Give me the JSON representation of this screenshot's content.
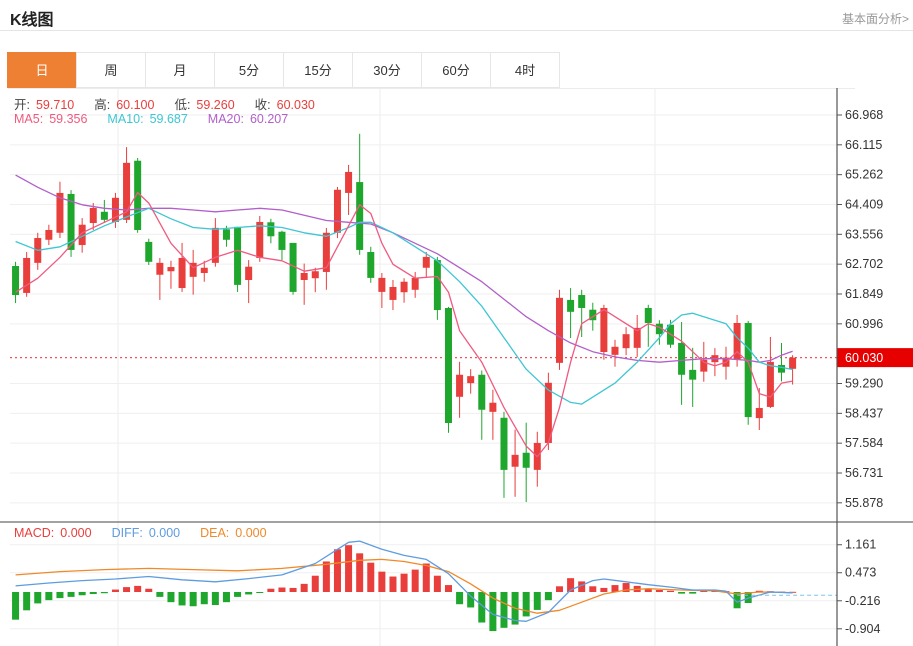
{
  "page": {
    "title": "K线图",
    "link": "基本面分析>"
  },
  "tabs": [
    {
      "label": "日",
      "active": true
    },
    {
      "label": "周",
      "active": false
    },
    {
      "label": "月",
      "active": false
    },
    {
      "label": "5分",
      "active": false
    },
    {
      "label": "15分",
      "active": false
    },
    {
      "label": "30分",
      "active": false
    },
    {
      "label": "60分",
      "active": false
    },
    {
      "label": "4时",
      "active": false
    }
  ],
  "ohlc": [
    {
      "label": "开:",
      "value": "59.710"
    },
    {
      "label": "高:",
      "value": "60.100"
    },
    {
      "label": "低:",
      "value": "59.260"
    },
    {
      "label": "收:",
      "value": "60.030"
    }
  ],
  "ma_legend": [
    {
      "label": "MA5:",
      "value": "59.356",
      "color": "#ef5a80"
    },
    {
      "label": "MA10:",
      "value": "59.687",
      "color": "#3ec6d3"
    },
    {
      "label": "MA20:",
      "value": "60.207",
      "color": "#b25fc9"
    }
  ],
  "macd_legend": [
    {
      "label": "MACD:",
      "value": "0.000",
      "color": "#e83e3c"
    },
    {
      "label": "DIFF:",
      "value": "0.000",
      "color": "#5e9cdf"
    },
    {
      "label": "DEA:",
      "value": "0.000",
      "color": "#f08929"
    }
  ],
  "colors": {
    "up": "#e83e3c",
    "down": "#1ea62d",
    "ma5": "#ef5a80",
    "ma10": "#3ec6d3",
    "ma20": "#b25fc9",
    "diff": "#5e9cdf",
    "dea": "#f08929",
    "price_line": "#f25555",
    "badge": "#e60000",
    "axis": "#555555",
    "grid": "#efefef",
    "vgrid": "#ececec",
    "tick_text": "#333333",
    "label_text": "#444444",
    "dashed_blue": "#7fc3e8"
  },
  "chart_data": {
    "type": "candlestick",
    "title": "K线图 (daily)",
    "legend_position": "top-left",
    "grid": true,
    "price_axis": {
      "ticks": [
        66.968,
        66.115,
        65.262,
        64.409,
        63.556,
        62.702,
        61.849,
        60.996,
        59.29,
        58.437,
        57.584,
        56.731,
        55.878
      ],
      "current_price": "60.030",
      "current_price_value": 60.03
    },
    "macd_axis": {
      "ticks": [
        1.161,
        0.473,
        -0.216,
        -0.904
      ]
    },
    "candles_format": [
      "open",
      "close",
      "low",
      "high"
    ],
    "candles": [
      [
        62.65,
        61.82,
        61.59,
        62.77
      ],
      [
        61.88,
        62.88,
        61.77,
        63.05
      ],
      [
        62.74,
        63.45,
        62.54,
        63.6
      ],
      [
        63.4,
        63.68,
        63.25,
        63.83
      ],
      [
        63.6,
        64.74,
        63.45,
        65.06
      ],
      [
        64.71,
        63.11,
        62.91,
        64.82
      ],
      [
        63.25,
        63.83,
        63.03,
        64.02
      ],
      [
        63.88,
        64.31,
        63.68,
        64.45
      ],
      [
        64.2,
        63.97,
        63.88,
        64.54
      ],
      [
        63.91,
        64.6,
        63.74,
        64.74
      ],
      [
        63.97,
        65.6,
        63.88,
        66.05
      ],
      [
        65.66,
        63.68,
        63.6,
        65.74
      ],
      [
        63.34,
        62.77,
        62.68,
        63.43
      ],
      [
        62.4,
        62.74,
        61.68,
        62.88
      ],
      [
        62.5,
        62.62,
        62.0,
        62.8
      ],
      [
        62.02,
        62.88,
        61.91,
        63.31
      ],
      [
        62.34,
        62.74,
        61.83,
        63.11
      ],
      [
        62.45,
        62.6,
        62.2,
        62.8
      ],
      [
        62.74,
        63.74,
        62.63,
        64.02
      ],
      [
        63.7,
        63.4,
        63.2,
        63.8
      ],
      [
        63.77,
        62.11,
        61.91,
        63.77
      ],
      [
        62.25,
        62.63,
        61.59,
        62.82
      ],
      [
        62.88,
        63.91,
        62.77,
        64.08
      ],
      [
        63.9,
        63.5,
        63.3,
        64.0
      ],
      [
        63.63,
        63.11,
        62.82,
        63.66
      ],
      [
        63.31,
        61.91,
        61.83,
        63.31
      ],
      [
        62.25,
        62.45,
        61.54,
        62.72
      ],
      [
        62.3,
        62.5,
        61.9,
        62.6
      ],
      [
        62.48,
        63.6,
        61.97,
        63.74
      ],
      [
        63.6,
        64.83,
        63.45,
        64.91
      ],
      [
        64.74,
        65.34,
        64.11,
        65.54
      ],
      [
        65.05,
        63.11,
        62.97,
        66.43
      ],
      [
        63.05,
        62.31,
        62.17,
        63.2
      ],
      [
        61.91,
        62.31,
        61.45,
        62.45
      ],
      [
        61.68,
        62.05,
        61.39,
        62.25
      ],
      [
        61.9,
        62.2,
        61.6,
        62.3
      ],
      [
        61.97,
        62.31,
        61.74,
        62.48
      ],
      [
        62.6,
        62.91,
        62.31,
        63.05
      ],
      [
        62.82,
        61.39,
        61.11,
        62.91
      ],
      [
        61.45,
        58.16,
        57.88,
        61.48
      ],
      [
        58.91,
        59.54,
        58.31,
        59.91
      ],
      [
        59.3,
        59.5,
        59.0,
        59.7
      ],
      [
        59.54,
        58.54,
        57.68,
        59.66
      ],
      [
        58.48,
        58.74,
        57.68,
        59.11
      ],
      [
        58.31,
        56.82,
        56.02,
        58.48
      ],
      [
        56.91,
        57.25,
        56.05,
        57.97
      ],
      [
        57.31,
        56.88,
        55.9,
        58.17
      ],
      [
        56.82,
        57.59,
        56.34,
        57.91
      ],
      [
        57.59,
        59.31,
        57.39,
        59.6
      ],
      [
        59.88,
        61.74,
        59.68,
        61.97
      ],
      [
        61.68,
        61.34,
        60.59,
        62.02
      ],
      [
        61.82,
        61.45,
        60.62,
        61.97
      ],
      [
        61.4,
        61.1,
        60.8,
        61.6
      ],
      [
        60.19,
        61.45,
        59.97,
        61.54
      ],
      [
        60.11,
        60.34,
        59.77,
        60.54
      ],
      [
        60.3,
        60.7,
        60.1,
        60.9
      ],
      [
        60.31,
        60.88,
        60.05,
        61.25
      ],
      [
        61.45,
        61.02,
        60.34,
        61.54
      ],
      [
        61.0,
        60.7,
        60.4,
        61.1
      ],
      [
        60.97,
        60.4,
        60.31,
        61.11
      ],
      [
        60.45,
        59.54,
        58.68,
        61.05
      ],
      [
        59.68,
        59.4,
        58.62,
        60.31
      ],
      [
        59.63,
        59.97,
        59.34,
        60.48
      ],
      [
        59.9,
        60.1,
        59.5,
        60.3
      ],
      [
        59.77,
        60.03,
        59.4,
        60.34
      ],
      [
        59.97,
        61.02,
        59.77,
        61.25
      ],
      [
        61.02,
        58.33,
        58.11,
        61.08
      ],
      [
        58.3,
        58.59,
        57.96,
        59.16
      ],
      [
        58.62,
        59.91,
        58.59,
        60.62
      ],
      [
        59.82,
        59.6,
        59.35,
        60.45
      ],
      [
        59.71,
        60.03,
        59.26,
        60.1
      ]
    ],
    "ma5_line": [
      [
        0,
        61.9
      ],
      [
        2,
        62.3
      ],
      [
        4,
        62.9
      ],
      [
        6,
        63.6
      ],
      [
        8,
        63.9
      ],
      [
        10,
        64.2
      ],
      [
        11,
        64.75
      ],
      [
        12,
        64.45
      ],
      [
        14,
        63.3
      ],
      [
        16,
        62.6
      ],
      [
        18,
        62.9
      ],
      [
        20,
        63.1
      ],
      [
        22,
        62.9
      ],
      [
        24,
        62.8
      ],
      [
        26,
        62.5
      ],
      [
        28,
        62.6
      ],
      [
        30,
        63.8
      ],
      [
        31,
        64.4
      ],
      [
        32,
        64.15
      ],
      [
        33,
        63.3
      ],
      [
        34,
        62.7
      ],
      [
        36,
        62.3
      ],
      [
        38,
        62.35
      ],
      [
        39,
        61.9
      ],
      [
        40,
        60.8
      ],
      [
        42,
        59.9
      ],
      [
        44,
        58.6
      ],
      [
        46,
        57.5
      ],
      [
        47,
        57.2
      ],
      [
        48,
        57.6
      ],
      [
        49,
        58.6
      ],
      [
        50,
        59.9
      ],
      [
        51,
        61.0
      ],
      [
        53,
        61.4
      ],
      [
        54,
        61.2
      ],
      [
        56,
        60.8
      ],
      [
        57,
        61.0
      ],
      [
        58,
        60.9
      ],
      [
        60,
        60.5
      ],
      [
        62,
        59.9
      ],
      [
        63,
        59.8
      ],
      [
        64,
        59.9
      ],
      [
        65,
        60.2
      ],
      [
        66,
        59.9
      ],
      [
        67,
        59.0
      ],
      [
        68,
        58.9
      ],
      [
        69,
        59.3
      ],
      [
        70,
        59.36
      ]
    ],
    "ma10_line": [
      [
        0,
        63.35
      ],
      [
        2,
        63.1
      ],
      [
        4,
        63.2
      ],
      [
        6,
        63.5
      ],
      [
        8,
        63.8
      ],
      [
        10,
        64.05
      ],
      [
        12,
        64.3
      ],
      [
        14,
        64.0
      ],
      [
        16,
        63.75
      ],
      [
        18,
        63.7
      ],
      [
        20,
        63.75
      ],
      [
        22,
        63.8
      ],
      [
        24,
        63.75
      ],
      [
        26,
        63.6
      ],
      [
        28,
        63.5
      ],
      [
        30,
        63.75
      ],
      [
        31,
        63.9
      ],
      [
        32,
        63.9
      ],
      [
        34,
        63.6
      ],
      [
        36,
        63.2
      ],
      [
        38,
        62.8
      ],
      [
        40,
        62.2
      ],
      [
        42,
        61.5
      ],
      [
        44,
        60.6
      ],
      [
        46,
        59.7
      ],
      [
        48,
        59.1
      ],
      [
        50,
        58.75
      ],
      [
        51,
        58.7
      ],
      [
        52,
        58.9
      ],
      [
        54,
        59.3
      ],
      [
        56,
        59.9
      ],
      [
        58,
        60.6
      ],
      [
        59,
        61.0
      ],
      [
        60,
        61.25
      ],
      [
        61,
        61.3
      ],
      [
        62,
        61.2
      ],
      [
        64,
        61.0
      ],
      [
        65,
        60.6
      ],
      [
        66,
        60.3
      ],
      [
        67,
        59.9
      ],
      [
        68,
        59.8
      ],
      [
        69,
        59.75
      ],
      [
        70,
        59.69
      ]
    ],
    "ma20_line": [
      [
        0,
        65.25
      ],
      [
        2,
        64.9
      ],
      [
        4,
        64.6
      ],
      [
        6,
        64.4
      ],
      [
        8,
        64.3
      ],
      [
        10,
        64.25
      ],
      [
        12,
        64.3
      ],
      [
        14,
        64.3
      ],
      [
        16,
        64.25
      ],
      [
        18,
        64.2
      ],
      [
        20,
        64.25
      ],
      [
        22,
        64.3
      ],
      [
        24,
        64.25
      ],
      [
        26,
        64.1
      ],
      [
        28,
        63.95
      ],
      [
        30,
        63.9
      ],
      [
        32,
        63.85
      ],
      [
        34,
        63.6
      ],
      [
        36,
        63.3
      ],
      [
        38,
        63.0
      ],
      [
        40,
        62.6
      ],
      [
        42,
        62.2
      ],
      [
        44,
        61.7
      ],
      [
        46,
        61.2
      ],
      [
        48,
        60.8
      ],
      [
        50,
        60.45
      ],
      [
        52,
        60.2
      ],
      [
        54,
        60.05
      ],
      [
        56,
        59.95
      ],
      [
        58,
        59.9
      ],
      [
        60,
        59.95
      ],
      [
        62,
        60.0
      ],
      [
        64,
        60.0
      ],
      [
        66,
        59.95
      ],
      [
        67,
        59.9
      ],
      [
        68,
        59.95
      ],
      [
        69,
        60.1
      ],
      [
        70,
        60.21
      ]
    ],
    "macd_hist": [
      -0.68,
      -0.45,
      -0.28,
      -0.2,
      -0.15,
      -0.12,
      -0.08,
      -0.05,
      -0.03,
      0.06,
      0.12,
      0.15,
      0.08,
      -0.12,
      -0.25,
      -0.33,
      -0.35,
      -0.3,
      -0.32,
      -0.25,
      -0.12,
      -0.06,
      -0.02,
      0.08,
      0.11,
      0.1,
      0.2,
      0.4,
      0.75,
      1.05,
      1.15,
      0.95,
      0.72,
      0.5,
      0.38,
      0.45,
      0.55,
      0.7,
      0.4,
      0.17,
      -0.3,
      -0.38,
      -0.75,
      -0.96,
      -0.88,
      -0.8,
      -0.6,
      -0.44,
      -0.2,
      0.14,
      0.34,
      0.26,
      0.14,
      0.1,
      0.17,
      0.22,
      0.15,
      0.08,
      0.05,
      0.03,
      -0.04,
      -0.04,
      0.05,
      0.04,
      0.02,
      -0.4,
      -0.27,
      0.03,
      0.02,
      0.01,
      0.005
    ],
    "diff_line": [
      [
        0,
        0.15
      ],
      [
        3,
        0.22
      ],
      [
        6,
        0.28
      ],
      [
        9,
        0.32
      ],
      [
        12,
        0.38
      ],
      [
        15,
        0.3
      ],
      [
        18,
        0.25
      ],
      [
        21,
        0.33
      ],
      [
        24,
        0.42
      ],
      [
        27,
        0.7
      ],
      [
        29,
        1.05
      ],
      [
        30,
        1.22
      ],
      [
        31,
        1.25
      ],
      [
        33,
        1.05
      ],
      [
        35,
        0.9
      ],
      [
        37,
        0.8
      ],
      [
        39,
        0.45
      ],
      [
        41,
        -0.1
      ],
      [
        43,
        -0.55
      ],
      [
        45,
        -0.7
      ],
      [
        46,
        -0.72
      ],
      [
        48,
        -0.5
      ],
      [
        50,
        0.05
      ],
      [
        52,
        0.28
      ],
      [
        53,
        0.32
      ],
      [
        55,
        0.25
      ],
      [
        57,
        0.18
      ],
      [
        59,
        0.12
      ],
      [
        61,
        0.05
      ],
      [
        63,
        0.05
      ],
      [
        64,
        0.02
      ],
      [
        65,
        -0.25
      ],
      [
        66,
        -0.15
      ],
      [
        68,
        0.0
      ],
      [
        70,
        -0.02
      ]
    ],
    "dea_line": [
      [
        0,
        0.42
      ],
      [
        4,
        0.5
      ],
      [
        8,
        0.55
      ],
      [
        12,
        0.58
      ],
      [
        16,
        0.55
      ],
      [
        20,
        0.52
      ],
      [
        24,
        0.58
      ],
      [
        28,
        0.68
      ],
      [
        31,
        0.78
      ],
      [
        33,
        0.8
      ],
      [
        35,
        0.75
      ],
      [
        37,
        0.65
      ],
      [
        39,
        0.5
      ],
      [
        41,
        0.2
      ],
      [
        43,
        -0.15
      ],
      [
        45,
        -0.4
      ],
      [
        47,
        -0.52
      ],
      [
        49,
        -0.45
      ],
      [
        51,
        -0.25
      ],
      [
        53,
        -0.05
      ],
      [
        55,
        0.05
      ],
      [
        57,
        0.08
      ],
      [
        59,
        0.06
      ],
      [
        61,
        0.04
      ],
      [
        63,
        0.03
      ],
      [
        65,
        -0.05
      ],
      [
        67,
        0.0
      ],
      [
        69,
        -0.01
      ],
      [
        70,
        -0.02
      ]
    ]
  }
}
